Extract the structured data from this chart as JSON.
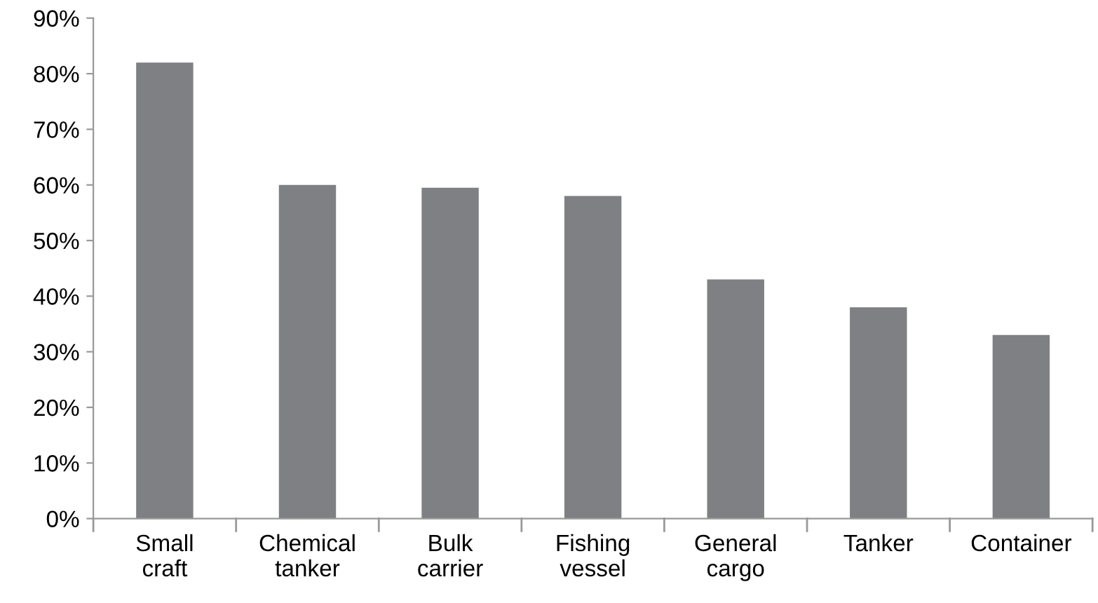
{
  "chart_data": {
    "type": "bar",
    "categories": [
      "Small\ncraft",
      "Chemical\ntanker",
      "Bulk\ncarrier",
      "Fishing\nvessel",
      "General\ncargo",
      "Tanker",
      "Container"
    ],
    "values": [
      82,
      60,
      59.5,
      58,
      43,
      38,
      33
    ],
    "color": "#7e8084",
    "ylim": [
      0,
      90
    ],
    "yticks": [
      {
        "value": 0,
        "label": "0%"
      },
      {
        "value": 10,
        "label": "10%"
      },
      {
        "value": 20,
        "label": "20%"
      },
      {
        "value": 30,
        "label": "30%"
      },
      {
        "value": 40,
        "label": "40%"
      },
      {
        "value": 50,
        "label": "50%"
      },
      {
        "value": 60,
        "label": "60%"
      },
      {
        "value": 70,
        "label": "70%"
      },
      {
        "value": 80,
        "label": "80%"
      },
      {
        "value": 90,
        "label": "90%"
      }
    ],
    "grid": false
  }
}
